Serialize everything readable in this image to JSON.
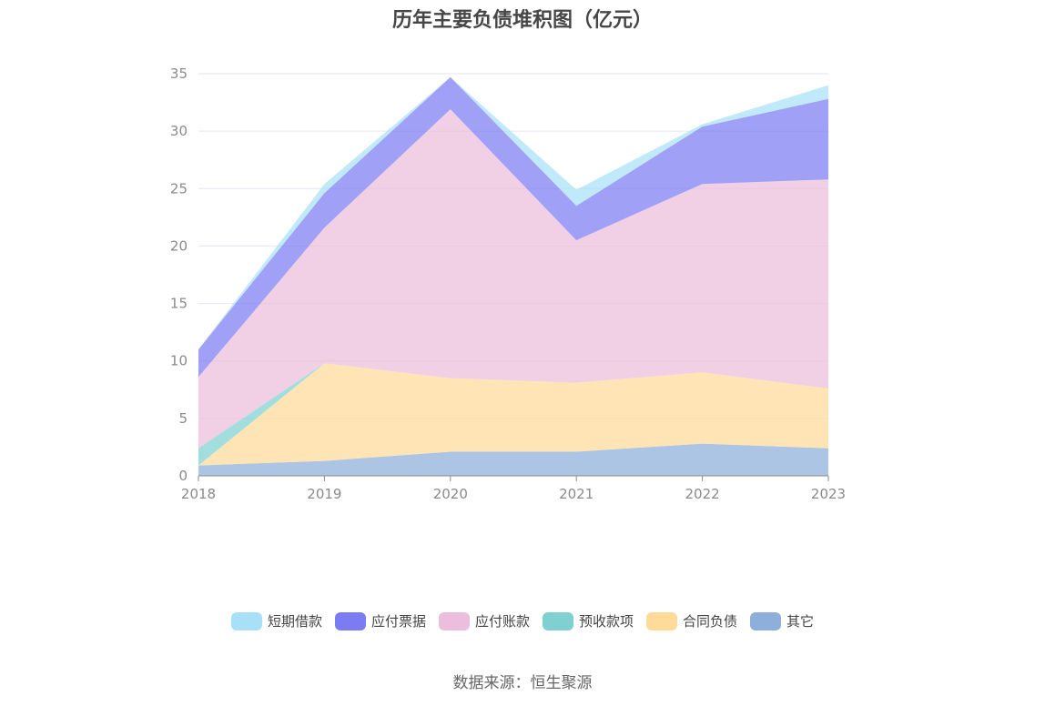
{
  "chart_data": {
    "type": "area",
    "stacked": true,
    "title": "历年主要负债堆积图（亿元）",
    "categories": [
      "2018",
      "2019",
      "2020",
      "2021",
      "2022",
      "2023"
    ],
    "ylim": [
      0,
      35
    ],
    "yticks": [
      0,
      5,
      10,
      15,
      20,
      25,
      30,
      35
    ],
    "grid": true,
    "legend_position": "bottom",
    "series": [
      {
        "name": "其它",
        "color": "#8eaedb",
        "values": [
          0.9,
          1.3,
          2.1,
          2.1,
          2.8,
          2.4
        ]
      },
      {
        "name": "合同负债",
        "color": "#ffdb99",
        "values": [
          0.0,
          8.5,
          6.4,
          6.0,
          6.2,
          5.2
        ]
      },
      {
        "name": "预收款项",
        "color": "#7fd1d1",
        "values": [
          1.5,
          0.0,
          0.0,
          0.0,
          0.0,
          0.0
        ]
      },
      {
        "name": "应付账款",
        "color": "#ebbedd",
        "values": [
          6.2,
          11.8,
          23.4,
          12.4,
          16.4,
          18.2
        ]
      },
      {
        "name": "应付票据",
        "color": "#7c7cf2",
        "values": [
          2.4,
          3.0,
          2.8,
          3.0,
          5.0,
          7.0
        ]
      },
      {
        "name": "短期借款",
        "color": "#a8e0f8",
        "values": [
          0.0,
          0.8,
          0.0,
          1.4,
          0.2,
          1.2
        ]
      }
    ],
    "legend_order": [
      "短期借款",
      "应付票据",
      "应付账款",
      "预收款项",
      "合同负债",
      "其它"
    ]
  },
  "source": "数据来源：恒生聚源"
}
